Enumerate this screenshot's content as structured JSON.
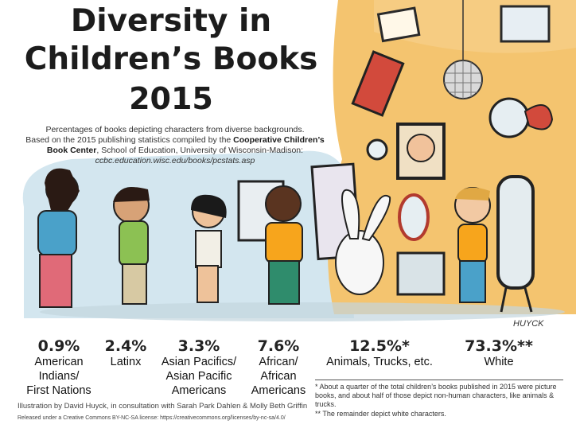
{
  "title_line1": "Diversity in",
  "title_line2": "Children’s Books",
  "title_line3": "2015",
  "intro_line1": "Percentages of books depicting characters from diverse backgrounds.",
  "intro_line2a": "Based on the 2015 publishing statistics compiled by the ",
  "intro_line2b": "Cooperative Children’s",
  "intro_line3a": "Book Center",
  "intro_line3b": ", School of Education, University of Wisconsin-Madison:",
  "intro_url": "ccbc.education.wisc.edu/books/pcstats.asp",
  "artist_signature": "HUYCK",
  "footnote1": "* About a quarter of the total children’s books published in 2015 were picture books, and about half of those depict non-human characters, like animals & trucks.",
  "footnote2": "** The remainder depict white characters.",
  "credit": "Illustration by David Huyck, in consultation with Sarah Park Dahlen & Molly Beth Griffin",
  "license": "Released under a Creative Commons BY-NC-SA license: https://creativecommons.org/licenses/by-nc-sa/4.0/",
  "colors": {
    "wall": "#f5c16a",
    "background_blue": "#cfe4ee",
    "floor": "#c9dbe3",
    "ink": "#1c1c1c"
  },
  "chart_data": {
    "type": "table",
    "title": "Diversity in Children’s Books 2015",
    "categories": [
      "American Indians/ First Nations",
      "Latinx",
      "Asian Pacifics/ Asian Pacific Americans",
      "African/ African Americans",
      "Animals, Trucks, etc.",
      "White"
    ],
    "values": [
      0.9,
      2.4,
      3.3,
      7.6,
      12.5,
      73.3
    ],
    "value_labels": [
      "0.9%",
      "2.4%",
      "3.3%",
      "7.6%",
      "12.5%*",
      "73.3%**"
    ],
    "unit": "%"
  }
}
